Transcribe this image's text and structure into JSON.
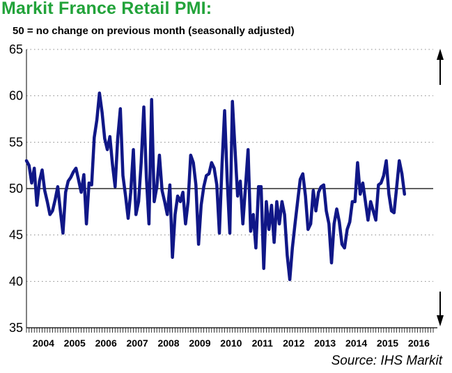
{
  "title": "Markit France Retail PMI:",
  "subtitle": "50 = no change on previous month (seasonally adjusted)",
  "source": "Source: IHS Markit",
  "colors": {
    "title": "#22a33a",
    "series": "#101787",
    "reference_line": "#000000",
    "grid": "#888888"
  },
  "chart_data": {
    "type": "line",
    "title": "Markit France Retail PMI:",
    "subtitle": "50 = no change on previous month (seasonally adjusted)",
    "ylim": [
      35,
      65
    ],
    "yticks": [
      35,
      40,
      45,
      50,
      55,
      60,
      65
    ],
    "x_start": "2003-12",
    "x_end": "2016-12",
    "x_tick_labels": [
      "2004",
      "2005",
      "2006",
      "2007",
      "2008",
      "2009",
      "2010",
      "2011",
      "2012",
      "2013",
      "2014",
      "2015",
      "2016"
    ],
    "reference_line": 50,
    "grid": "horizontal dotted",
    "arrows": [
      "up",
      "down"
    ],
    "series": [
      {
        "x_start": "2003-12",
        "frequency": "monthly",
        "values": [
          53.0,
          52.5,
          50.6,
          52.2,
          48.2,
          50.8,
          52.0,
          49.8,
          48.6,
          47.2,
          47.6,
          48.8,
          50.2,
          47.6,
          45.2,
          49.6,
          50.8,
          51.2,
          51.8,
          52.2,
          50.9,
          49.6,
          51.5,
          46.2,
          50.6,
          50.4,
          55.5,
          57.4,
          60.3,
          58.2,
          55.4,
          54.2,
          55.6,
          52.6,
          50.2,
          55.4,
          58.6,
          51.4,
          49.2,
          46.8,
          49.6,
          54.2,
          47.2,
          48.6,
          52.8,
          58.8,
          51.2,
          46.2,
          59.6,
          48.6,
          50.2,
          53.6,
          49.8,
          48.6,
          47.2,
          50.4,
          42.6,
          47.2,
          49.2,
          48.6,
          49.6,
          46.2,
          48.6,
          53.6,
          52.8,
          50.4,
          44.0,
          48.2,
          50.2,
          51.4,
          51.6,
          52.8,
          52.2,
          50.4,
          45.2,
          52.6,
          58.4,
          50.8,
          45.2,
          59.4,
          54.2,
          49.2,
          50.8,
          46.2,
          50.2,
          54.2,
          45.4,
          47.2,
          43.6,
          50.2,
          50.2,
          41.4,
          48.6,
          45.6,
          48.2,
          44.2,
          48.6,
          46.2,
          48.6,
          47.2,
          42.8,
          40.2,
          43.6,
          46.2,
          48.6,
          51.0,
          51.6,
          49.2,
          45.6,
          46.2,
          49.8,
          47.6,
          49.6,
          50.2,
          50.4,
          47.6,
          46.2,
          42.0,
          46.2,
          47.8,
          46.4,
          44.0,
          43.6,
          45.6,
          46.4,
          48.6,
          48.6,
          52.8,
          49.4,
          50.6,
          48.6,
          46.6,
          48.6,
          47.6,
          46.6,
          50.4,
          50.6,
          51.4,
          53.0,
          49.4,
          47.6,
          47.4,
          50.2,
          53.0,
          51.6,
          49.4
        ]
      }
    ]
  }
}
